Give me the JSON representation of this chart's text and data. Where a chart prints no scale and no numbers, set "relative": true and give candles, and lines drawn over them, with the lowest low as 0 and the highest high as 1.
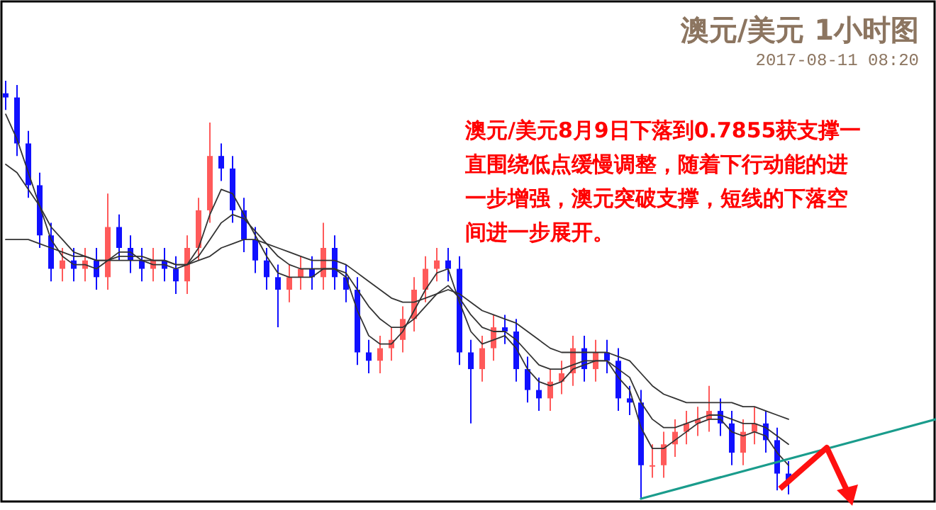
{
  "chart_data": {
    "type": "candlestick",
    "title": "澳元/美元 1小时图",
    "subtitle": "2017-08-11 08:20",
    "annotations": [
      "澳元/美元8月9日下落到0.7855获支撑一直围绕低点缓慢调整，随着下行动能的进一步增强，澳元突破支撑，短线的下落空间进一步展开。"
    ],
    "relative": true,
    "categories": [
      null,
      null,
      null,
      null,
      null,
      null,
      null,
      null,
      null,
      null,
      null,
      null,
      null,
      null,
      null,
      null,
      null,
      null,
      null,
      null,
      null,
      null,
      null,
      null,
      null,
      null,
      null,
      null,
      null,
      null,
      null,
      null,
      null,
      null,
      null,
      null,
      null,
      null,
      null,
      null,
      null,
      null,
      null,
      null,
      null,
      null,
      null,
      null,
      null,
      null,
      null,
      null,
      null,
      null,
      null,
      null,
      null,
      null,
      null,
      null,
      null,
      null,
      null,
      null,
      null,
      null,
      null,
      null,
      null,
      null,
      null,
      null,
      null,
      null,
      null,
      null,
      null,
      null,
      null,
      null,
      null,
      null,
      null
    ],
    "ohlc": [
      [
        0.97,
        1.0,
        0.93,
        0.96
      ],
      [
        0.96,
        0.99,
        0.82,
        0.85
      ],
      [
        0.85,
        0.88,
        0.72,
        0.75
      ],
      [
        0.75,
        0.78,
        0.6,
        0.63
      ],
      [
        0.63,
        0.66,
        0.52,
        0.55
      ],
      [
        0.55,
        0.6,
        0.52,
        0.57
      ],
      [
        0.57,
        0.6,
        0.52,
        0.55
      ],
      [
        0.55,
        0.6,
        0.52,
        0.57
      ],
      [
        0.57,
        0.6,
        0.5,
        0.53
      ],
      [
        0.53,
        0.73,
        0.5,
        0.65
      ],
      [
        0.65,
        0.68,
        0.57,
        0.6
      ],
      [
        0.6,
        0.63,
        0.54,
        0.57
      ],
      [
        0.57,
        0.6,
        0.52,
        0.55
      ],
      [
        0.55,
        0.6,
        0.52,
        0.57
      ],
      [
        0.57,
        0.6,
        0.52,
        0.55
      ],
      [
        0.55,
        0.58,
        0.49,
        0.52
      ],
      [
        0.52,
        0.63,
        0.49,
        0.6
      ],
      [
        0.6,
        0.72,
        0.57,
        0.69
      ],
      [
        0.69,
        0.9,
        0.66,
        0.82
      ],
      [
        0.82,
        0.85,
        0.76,
        0.79
      ],
      [
        0.79,
        0.82,
        0.66,
        0.69
      ],
      [
        0.69,
        0.72,
        0.59,
        0.62
      ],
      [
        0.62,
        0.65,
        0.54,
        0.57
      ],
      [
        0.57,
        0.6,
        0.5,
        0.53
      ],
      [
        0.53,
        0.56,
        0.41,
        0.5
      ],
      [
        0.5,
        0.56,
        0.47,
        0.53
      ],
      [
        0.53,
        0.58,
        0.5,
        0.55
      ],
      [
        0.55,
        0.58,
        0.5,
        0.53
      ],
      [
        0.53,
        0.66,
        0.5,
        0.6
      ],
      [
        0.6,
        0.63,
        0.5,
        0.53
      ],
      [
        0.53,
        0.56,
        0.47,
        0.5
      ],
      [
        0.5,
        0.53,
        0.32,
        0.35
      ],
      [
        0.35,
        0.38,
        0.3,
        0.33
      ],
      [
        0.33,
        0.39,
        0.3,
        0.36
      ],
      [
        0.36,
        0.41,
        0.33,
        0.38
      ],
      [
        0.38,
        0.46,
        0.35,
        0.43
      ],
      [
        0.43,
        0.53,
        0.4,
        0.5
      ],
      [
        0.5,
        0.58,
        0.47,
        0.55
      ],
      [
        0.55,
        0.6,
        0.52,
        0.57
      ],
      [
        0.57,
        0.6,
        0.52,
        0.55
      ],
      [
        0.55,
        0.58,
        0.32,
        0.35
      ],
      [
        0.35,
        0.38,
        0.18,
        0.31
      ],
      [
        0.31,
        0.39,
        0.28,
        0.36
      ],
      [
        0.36,
        0.44,
        0.33,
        0.41
      ],
      [
        0.41,
        0.44,
        0.37,
        0.4
      ],
      [
        0.4,
        0.43,
        0.28,
        0.31
      ],
      [
        0.31,
        0.34,
        0.23,
        0.26
      ],
      [
        0.26,
        0.29,
        0.21,
        0.24
      ],
      [
        0.24,
        0.31,
        0.21,
        0.28
      ],
      [
        0.28,
        0.33,
        0.25,
        0.3
      ],
      [
        0.3,
        0.39,
        0.27,
        0.36
      ],
      [
        0.36,
        0.39,
        0.28,
        0.31
      ],
      [
        0.31,
        0.38,
        0.28,
        0.35
      ],
      [
        0.35,
        0.38,
        0.3,
        0.33
      ],
      [
        0.33,
        0.36,
        0.21,
        0.24
      ],
      [
        0.24,
        0.27,
        0.2,
        0.23
      ],
      [
        0.23,
        0.26,
        0.0,
        0.08
      ],
      [
        0.08,
        0.13,
        0.05,
        0.08
      ],
      [
        0.08,
        0.16,
        0.05,
        0.13
      ],
      [
        0.13,
        0.19,
        0.1,
        0.16
      ],
      [
        0.16,
        0.21,
        0.13,
        0.18
      ],
      [
        0.18,
        0.22,
        0.15,
        0.19
      ],
      [
        0.19,
        0.27,
        0.16,
        0.21
      ],
      [
        0.21,
        0.24,
        0.15,
        0.18
      ],
      [
        0.18,
        0.21,
        0.08,
        0.11
      ],
      [
        0.11,
        0.19,
        0.08,
        0.16
      ],
      [
        0.16,
        0.22,
        0.13,
        0.18
      ],
      [
        0.18,
        0.21,
        0.11,
        0.14
      ],
      [
        0.14,
        0.17,
        0.02,
        0.06
      ],
      [
        0.06,
        0.09,
        0.01,
        0.04
      ],
      null,
      null,
      null,
      null,
      null,
      null,
      null,
      null,
      null,
      null,
      null,
      null,
      null
    ],
    "series": [
      {
        "type": "line",
        "color": "#333333",
        "values": [
          0.92,
          0.86,
          0.78,
          0.7,
          0.62,
          0.58,
          0.56,
          0.56,
          0.55,
          0.57,
          0.59,
          0.59,
          0.57,
          0.56,
          0.56,
          0.55,
          0.56,
          0.6,
          0.68,
          0.74,
          0.73,
          0.68,
          0.63,
          0.58,
          0.54,
          0.53,
          0.53,
          0.53,
          0.55,
          0.55,
          0.53,
          0.45,
          0.39,
          0.37,
          0.37,
          0.4,
          0.45,
          0.5,
          0.54,
          0.55,
          0.47,
          0.4,
          0.37,
          0.38,
          0.39,
          0.36,
          0.31,
          0.28,
          0.27,
          0.28,
          0.31,
          0.32,
          0.33,
          0.33,
          0.29,
          0.26,
          0.17,
          0.12,
          0.12,
          0.14,
          0.16,
          0.18,
          0.19,
          0.19,
          0.16,
          0.15,
          0.16,
          0.15,
          0.11,
          0.08,
          null,
          null,
          null,
          null,
          null,
          null,
          null,
          null,
          null,
          null,
          null,
          null,
          null
        ]
      },
      {
        "type": "line",
        "color": "#333333",
        "values": [
          0.8,
          0.78,
          0.74,
          0.7,
          0.65,
          0.62,
          0.59,
          0.58,
          0.57,
          0.57,
          0.58,
          0.58,
          0.58,
          0.57,
          0.57,
          0.56,
          0.56,
          0.58,
          0.62,
          0.66,
          0.68,
          0.67,
          0.64,
          0.61,
          0.58,
          0.56,
          0.55,
          0.55,
          0.55,
          0.55,
          0.54,
          0.5,
          0.46,
          0.43,
          0.41,
          0.41,
          0.43,
          0.46,
          0.49,
          0.51,
          0.48,
          0.44,
          0.41,
          0.4,
          0.4,
          0.38,
          0.35,
          0.32,
          0.31,
          0.31,
          0.32,
          0.33,
          0.33,
          0.33,
          0.31,
          0.29,
          0.23,
          0.19,
          0.17,
          0.17,
          0.18,
          0.19,
          0.2,
          0.2,
          0.19,
          0.18,
          0.18,
          0.17,
          0.15,
          0.13,
          null,
          null,
          null,
          null,
          null,
          null,
          null,
          null,
          null,
          null,
          null,
          null,
          null
        ]
      },
      {
        "type": "line",
        "color": "#333333",
        "values": [
          0.62,
          0.62,
          0.62,
          0.61,
          0.6,
          0.59,
          0.58,
          0.58,
          0.57,
          0.57,
          0.57,
          0.57,
          0.57,
          0.57,
          0.57,
          0.56,
          0.56,
          0.57,
          0.58,
          0.6,
          0.61,
          0.62,
          0.62,
          0.61,
          0.6,
          0.59,
          0.58,
          0.57,
          0.57,
          0.57,
          0.56,
          0.54,
          0.52,
          0.5,
          0.48,
          0.47,
          0.47,
          0.48,
          0.49,
          0.5,
          0.49,
          0.47,
          0.45,
          0.44,
          0.43,
          0.42,
          0.4,
          0.38,
          0.36,
          0.35,
          0.35,
          0.35,
          0.35,
          0.35,
          0.34,
          0.33,
          0.3,
          0.27,
          0.25,
          0.24,
          0.23,
          0.23,
          0.23,
          0.23,
          0.23,
          0.22,
          0.22,
          0.21,
          0.2,
          0.19,
          null,
          null,
          null,
          null,
          null,
          null,
          null,
          null,
          null,
          null,
          null,
          null,
          null
        ]
      },
      {
        "type": "line",
        "color": "#1a9c8c",
        "values": [
          null,
          null,
          null,
          null,
          null,
          null,
          null,
          null,
          null,
          null,
          null,
          null,
          null,
          null,
          null,
          null,
          null,
          null,
          null,
          null,
          null,
          null,
          null,
          null,
          null,
          null,
          null,
          null,
          null,
          null,
          null,
          null,
          null,
          null,
          null,
          null,
          null,
          null,
          null,
          null,
          null,
          null,
          null,
          null,
          null,
          null,
          null,
          null,
          null,
          null,
          null,
          null,
          null,
          null,
          null,
          null,
          0.0,
          null,
          null,
          null,
          null,
          null,
          null,
          null,
          null,
          null,
          null,
          null,
          null,
          null,
          null,
          null,
          null,
          null,
          null,
          null,
          null,
          null,
          null,
          null,
          null,
          null,
          0.19
        ]
      }
    ]
  }
}
